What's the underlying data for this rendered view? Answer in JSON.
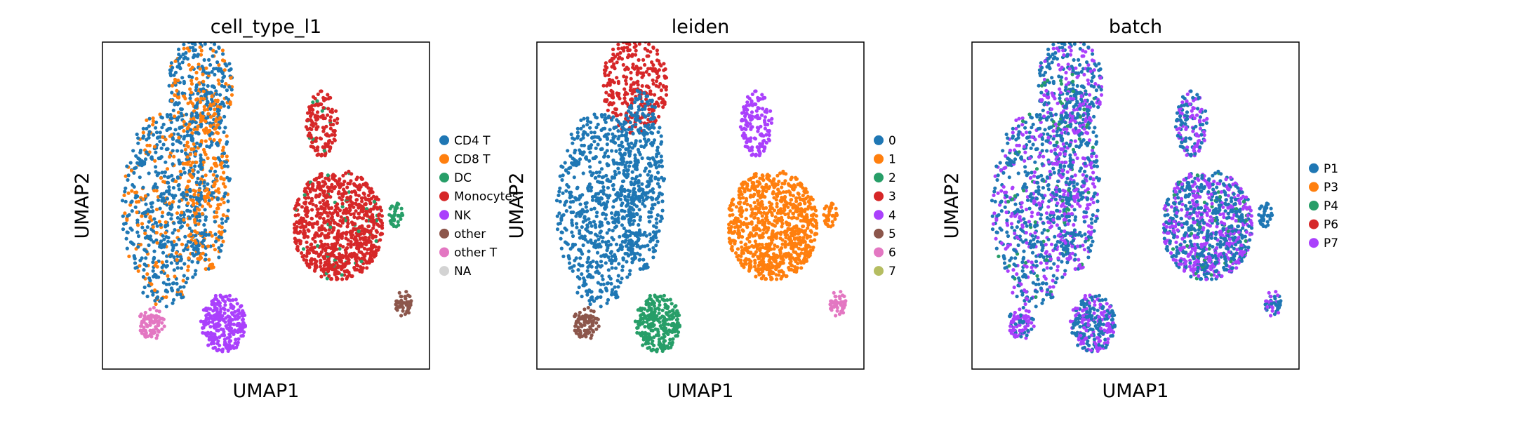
{
  "chart_data": [
    {
      "type": "scatter",
      "title": "cell_type_l1",
      "xlabel": "UMAP1",
      "ylabel": "UMAP2",
      "grid": false,
      "ticks": false,
      "legend_placement": "right",
      "series": [
        {
          "name": "CD4 T",
          "color": "#1f77b4"
        },
        {
          "name": "CD8 T",
          "color": "#ff7f0e"
        },
        {
          "name": "DC",
          "color": "#279e68"
        },
        {
          "name": "Monocytes",
          "color": "#d62728"
        },
        {
          "name": "NK",
          "color": "#aa40fc"
        },
        {
          "name": "other",
          "color": "#8c564b"
        },
        {
          "name": "other T",
          "color": "#e377c2"
        },
        {
          "name": "NA",
          "color": "#d3d3d3"
        }
      ]
    },
    {
      "type": "scatter",
      "title": "leiden",
      "xlabel": "UMAP1",
      "ylabel": "UMAP2",
      "grid": false,
      "ticks": false,
      "legend_placement": "right",
      "series": [
        {
          "name": "0",
          "color": "#1f77b4"
        },
        {
          "name": "1",
          "color": "#ff7f0e"
        },
        {
          "name": "2",
          "color": "#279e68"
        },
        {
          "name": "3",
          "color": "#d62728"
        },
        {
          "name": "4",
          "color": "#aa40fc"
        },
        {
          "name": "5",
          "color": "#8c564b"
        },
        {
          "name": "6",
          "color": "#e377c2"
        },
        {
          "name": "7",
          "color": "#b5bd61"
        }
      ]
    },
    {
      "type": "scatter",
      "title": "batch",
      "xlabel": "UMAP1",
      "ylabel": "UMAP2",
      "grid": false,
      "ticks": false,
      "legend_placement": "right",
      "series": [
        {
          "name": "P1",
          "color": "#1f77b4"
        },
        {
          "name": "P3",
          "color": "#ff7f0e"
        },
        {
          "name": "P4",
          "color": "#279e68"
        },
        {
          "name": "P6",
          "color": "#d62728"
        },
        {
          "name": "P7",
          "color": "#aa40fc"
        }
      ]
    }
  ]
}
